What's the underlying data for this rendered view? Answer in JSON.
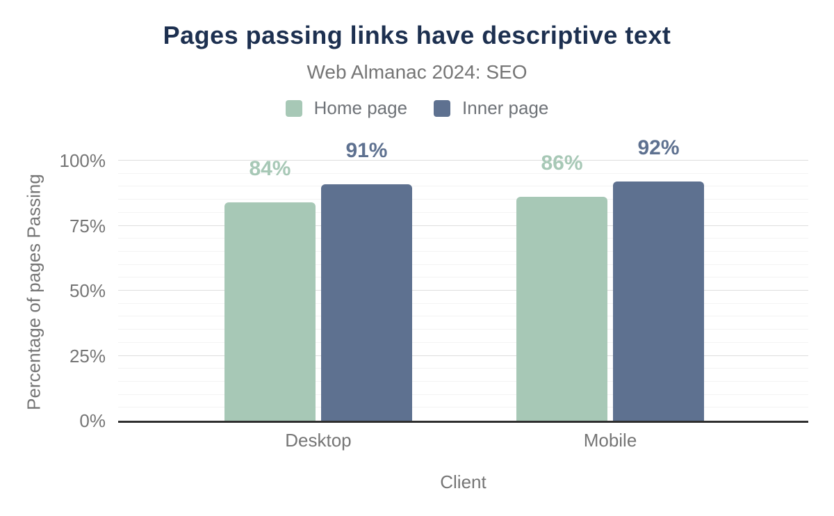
{
  "chart_data": {
    "type": "bar",
    "title": "Pages passing links have descriptive text",
    "subtitle": "Web Almanac 2024: SEO",
    "categories": [
      "Desktop",
      "Mobile"
    ],
    "series": [
      {
        "name": "Home page",
        "color": "#a7c8b6",
        "values": [
          84,
          86
        ],
        "labels": [
          "84%",
          "86%"
        ]
      },
      {
        "name": "Inner page",
        "color": "#5e7190",
        "values": [
          91,
          92
        ],
        "labels": [
          "91%",
          "92%"
        ]
      }
    ],
    "xlabel": "Client",
    "ylabel": "Percentage of pages Passing",
    "ylim": [
      0,
      100
    ],
    "ytick_values": [
      0,
      25,
      50,
      75,
      100
    ],
    "ytick_labels": [
      "0%",
      "25%",
      "50%",
      "75%",
      "100%"
    ],
    "minor_grid_step": 5,
    "grid": true,
    "legend_position": "top"
  },
  "colors": {
    "background": "#ffffff",
    "title": "#1d3050",
    "subtitle": "#757575",
    "axis_text": "#757575",
    "legend_text": "#6e7277",
    "major_grid": "#dedede",
    "minor_grid": "#f3f3f3",
    "baseline": "#2e2e2e"
  }
}
